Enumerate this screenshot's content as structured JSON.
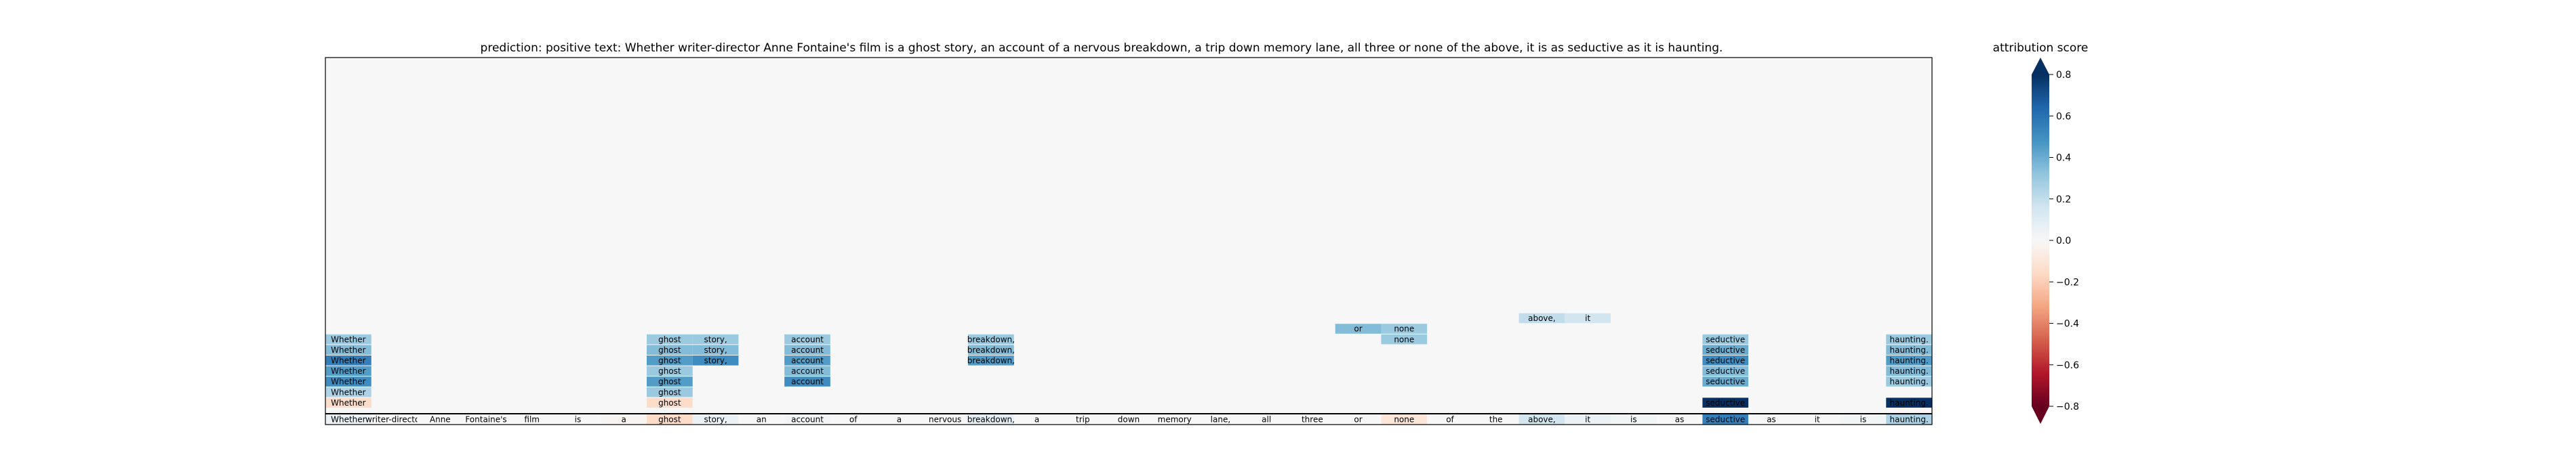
{
  "chart_data": {
    "type": "heatmap",
    "title": "prediction:  positive     text:  Whether writer-director Anne Fontaine's film is a ghost story, an account of a nervous breakdown, a trip down memory lane, all three or none of the above, it is as seductive as it is haunting.",
    "tokens": [
      "Whether",
      "writer-director",
      "Anne",
      "Fontaine's",
      "film",
      "is",
      "a",
      "ghost",
      "story,",
      "an",
      "account",
      "of",
      "a",
      "nervous",
      "breakdown,",
      "a",
      "trip",
      "down",
      "memory",
      "lane,",
      "all",
      "three",
      "or",
      "none",
      "of",
      "the",
      "above,",
      "it",
      "is",
      "as",
      "seductive",
      "as",
      "it",
      "is",
      "haunting."
    ],
    "bottom_row_scores": [
      0.05,
      0.0,
      0.0,
      0.0,
      0.0,
      0.0,
      -0.02,
      -0.15,
      0.05,
      0.0,
      0.02,
      0.0,
      0.0,
      0.0,
      0.08,
      0.0,
      0.0,
      0.0,
      0.0,
      0.0,
      0.0,
      0.0,
      0.0,
      -0.1,
      0.0,
      0.0,
      0.15,
      0.05,
      0.02,
      0.0,
      0.55,
      0.0,
      0.0,
      0.02,
      0.25
    ],
    "cells": [
      {
        "label": "Whether",
        "col": 0,
        "level": 1,
        "value": -0.15
      },
      {
        "label": "Whether",
        "col": 0,
        "level": 2,
        "value": 0.25
      },
      {
        "label": "Whether",
        "col": 0,
        "level": 3,
        "value": 0.5
      },
      {
        "label": "Whether",
        "col": 0,
        "level": 4,
        "value": 0.45
      },
      {
        "label": "Whether",
        "col": 0,
        "level": 5,
        "value": 0.55
      },
      {
        "label": "Whether",
        "col": 0,
        "level": 6,
        "value": 0.35
      },
      {
        "label": "Whether",
        "col": 0,
        "level": 7,
        "value": 0.3
      },
      {
        "label": "ghost",
        "col": 7,
        "level": 1,
        "value": -0.15
      },
      {
        "label": "ghost",
        "col": 7,
        "level": 2,
        "value": 0.3
      },
      {
        "label": "ghost",
        "col": 7,
        "level": 3,
        "value": 0.45
      },
      {
        "label": "ghost",
        "col": 7,
        "level": 4,
        "value": 0.3
      },
      {
        "label": "ghost",
        "col": 7,
        "level": 5,
        "value": 0.45
      },
      {
        "label": "ghost",
        "col": 7,
        "level": 6,
        "value": 0.35
      },
      {
        "label": "ghost",
        "col": 7,
        "level": 7,
        "value": 0.3
      },
      {
        "label": "story,",
        "col": 8,
        "level": 5,
        "value": 0.5
      },
      {
        "label": "story,",
        "col": 8,
        "level": 6,
        "value": 0.35
      },
      {
        "label": "story,",
        "col": 8,
        "level": 7,
        "value": 0.3
      },
      {
        "label": "account",
        "col": 10,
        "level": 3,
        "value": 0.5
      },
      {
        "label": "account",
        "col": 10,
        "level": 4,
        "value": 0.35
      },
      {
        "label": "account",
        "col": 10,
        "level": 5,
        "value": 0.45
      },
      {
        "label": "account",
        "col": 10,
        "level": 6,
        "value": 0.35
      },
      {
        "label": "account",
        "col": 10,
        "level": 7,
        "value": 0.3
      },
      {
        "label": "breakdown,",
        "col": 14,
        "level": 5,
        "value": 0.45
      },
      {
        "label": "breakdown,",
        "col": 14,
        "level": 6,
        "value": 0.35
      },
      {
        "label": "breakdown,",
        "col": 14,
        "level": 7,
        "value": 0.3
      },
      {
        "label": "or",
        "col": 22,
        "level": 8,
        "value": 0.35
      },
      {
        "label": "none",
        "col": 23,
        "level": 7,
        "value": 0.3
      },
      {
        "label": "none",
        "col": 23,
        "level": 8,
        "value": 0.3
      },
      {
        "label": "above,",
        "col": 26,
        "level": 9,
        "value": 0.2
      },
      {
        "label": "it",
        "col": 27,
        "level": 9,
        "value": 0.15
      },
      {
        "label": "seductive",
        "col": 30,
        "level": 1,
        "value": 0.8
      },
      {
        "label": "seductive",
        "col": 30,
        "level": 3,
        "value": 0.4
      },
      {
        "label": "seductive",
        "col": 30,
        "level": 4,
        "value": 0.35
      },
      {
        "label": "seductive",
        "col": 30,
        "level": 5,
        "value": 0.5
      },
      {
        "label": "seductive",
        "col": 30,
        "level": 6,
        "value": 0.4
      },
      {
        "label": "seductive",
        "col": 30,
        "level": 7,
        "value": 0.3
      },
      {
        "label": "haunting.",
        "col": 34,
        "level": 1,
        "value": 0.85
      },
      {
        "label": "haunting.",
        "col": 34,
        "level": 3,
        "value": 0.3
      },
      {
        "label": "haunting.",
        "col": 34,
        "level": 4,
        "value": 0.35
      },
      {
        "label": "haunting.",
        "col": 34,
        "level": 5,
        "value": 0.45
      },
      {
        "label": "haunting.",
        "col": 34,
        "level": 6,
        "value": 0.35
      },
      {
        "label": "haunting.",
        "col": 34,
        "level": 7,
        "value": 0.3
      }
    ],
    "colorbar": {
      "title": "attribution score",
      "range": [
        -0.8,
        0.8
      ],
      "ticks": [
        0.8,
        0.6,
        0.4,
        0.2,
        0.0,
        -0.2,
        -0.4,
        -0.6,
        -0.8
      ],
      "tick_labels": [
        "0.8",
        "0.6",
        "0.4",
        "0.2",
        "0.0",
        "−0.2",
        "−0.4",
        "−0.6",
        "−0.8"
      ],
      "colormap": "RdBu",
      "extend": "both"
    }
  }
}
